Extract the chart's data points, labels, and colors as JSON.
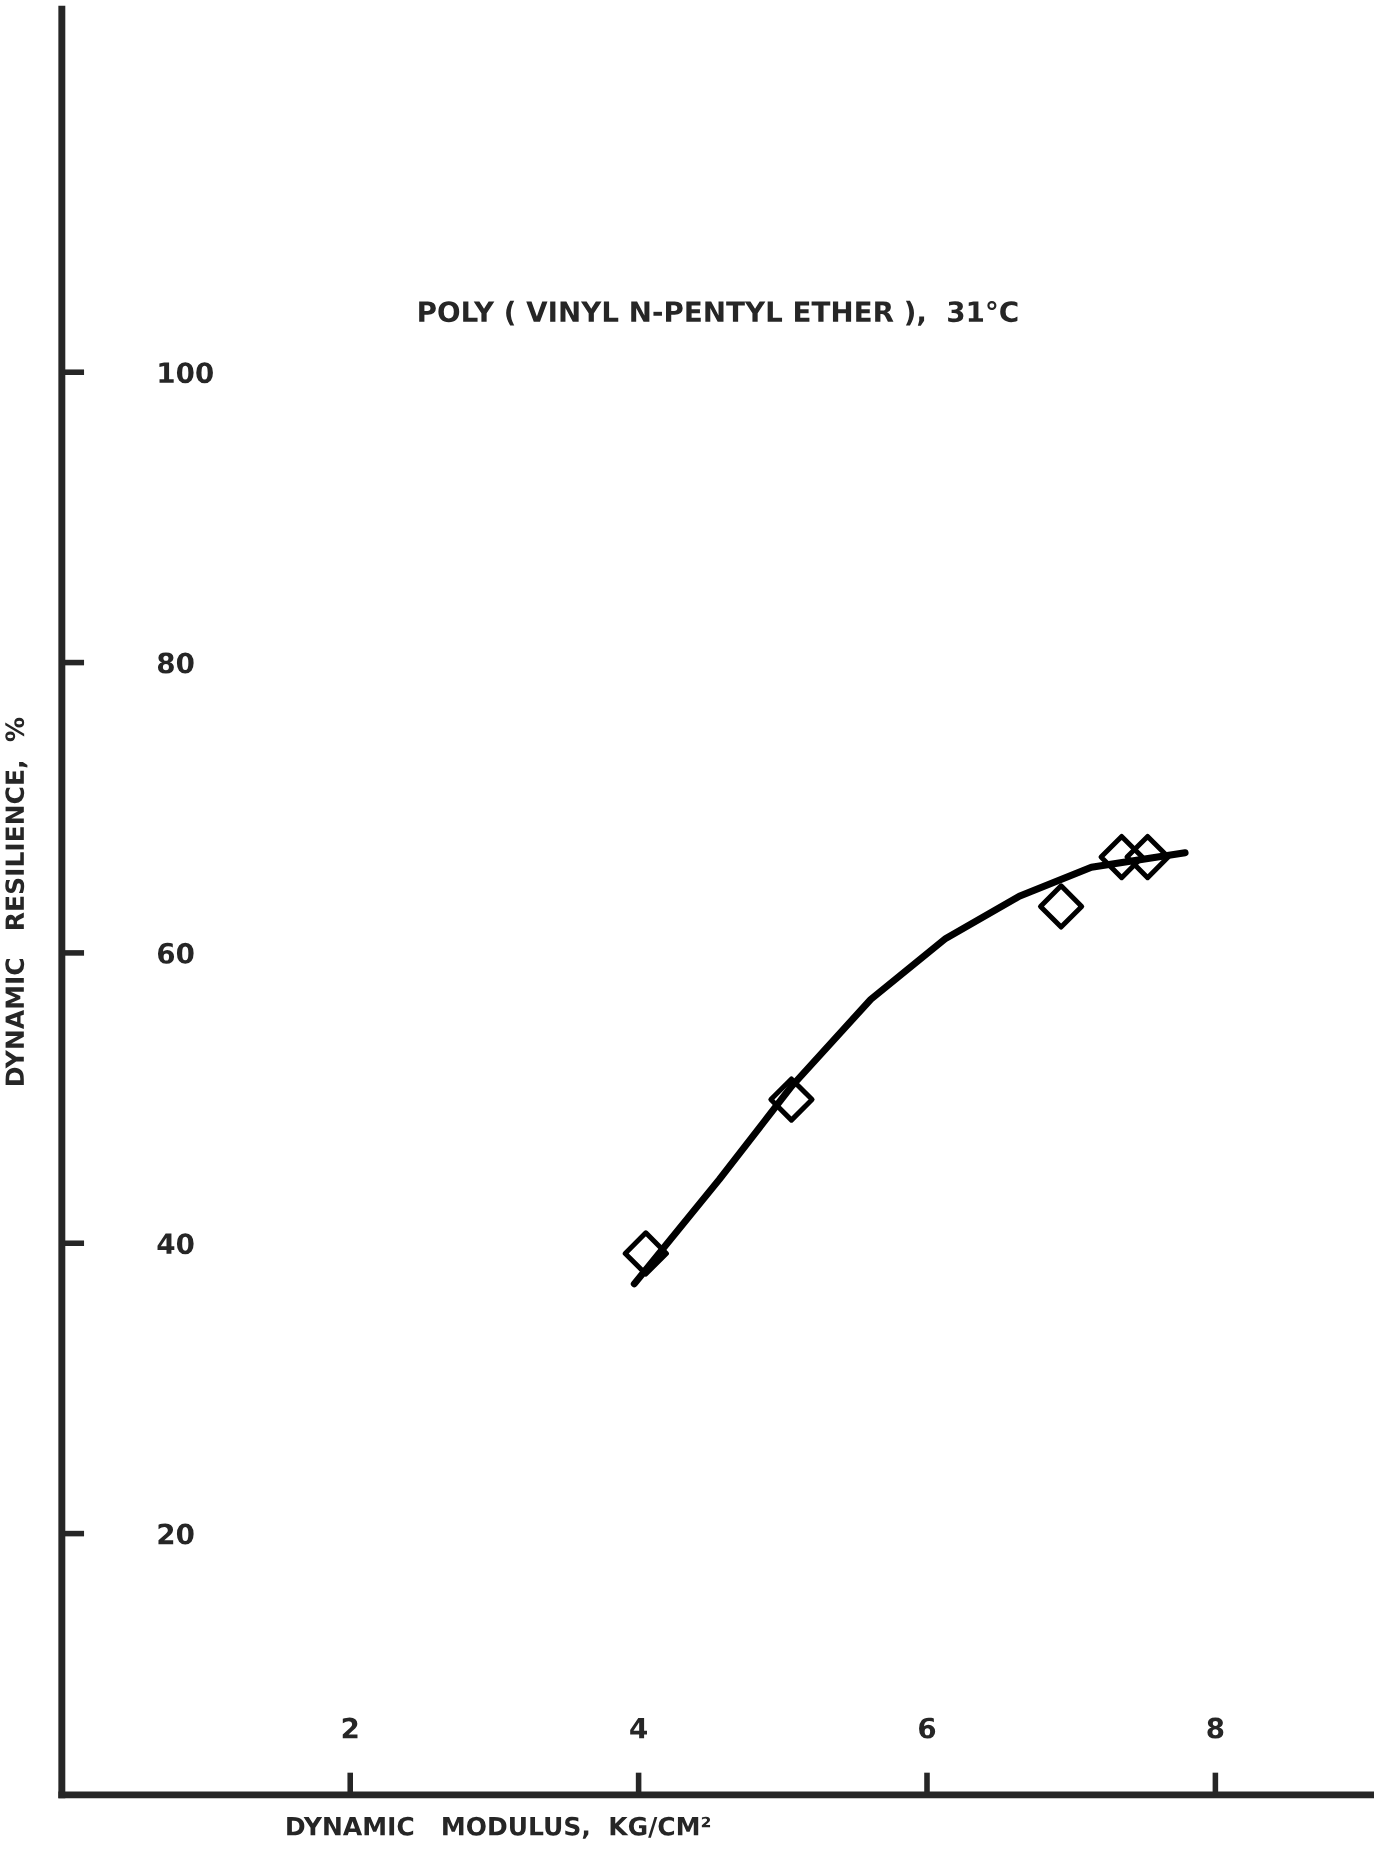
{
  "chart_data": {
    "type": "scatter",
    "title": "POLY ( VINYL N-PENTYL ETHER ),  31°C",
    "xlabel": "DYNAMIC   MODULUS,  KG/CM²",
    "ylabel": "DYNAMIC   RESILIENCE,  %",
    "xlim": [
      0,
      9.1
    ],
    "ylim": [
      2,
      125
    ],
    "xticks": [
      2,
      4,
      6,
      8
    ],
    "yticks": [
      20,
      40,
      60,
      80,
      100
    ],
    "grid": false,
    "legend": false,
    "series": [
      {
        "marker": "diamond",
        "color": "#000000",
        "x": [
          4.05,
          5.06,
          6.93,
          7.35,
          7.53
        ],
        "values": [
          39.3,
          49.9,
          63.2,
          66.6,
          66.6
        ]
      },
      {
        "type": "line",
        "marker": "none",
        "line_style": "solid",
        "color": "#000000",
        "x": [
          3.97,
          4.56,
          5.06,
          5.61,
          6.13,
          6.64,
          7.14,
          7.79
        ],
        "values": [
          37.2,
          44.4,
          50.8,
          56.8,
          61.0,
          63.9,
          65.9,
          66.9
        ]
      }
    ]
  }
}
